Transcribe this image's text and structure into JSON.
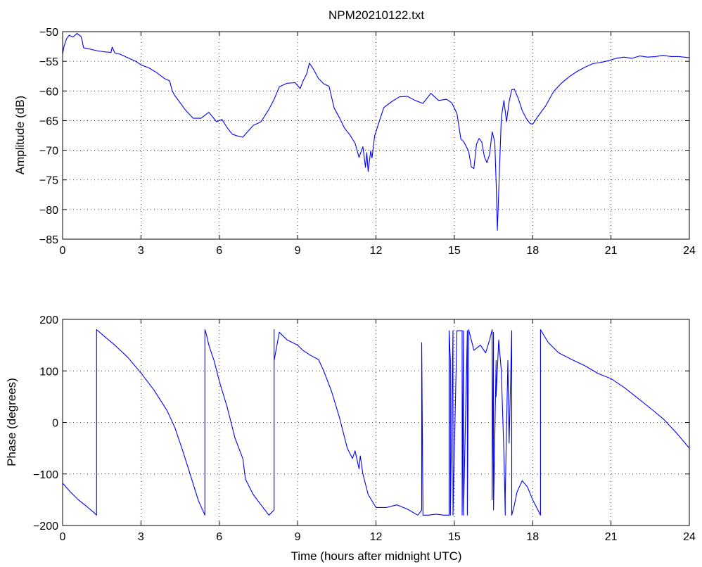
{
  "chart_data": [
    {
      "type": "line",
      "title": "NPM20210122.txt",
      "xlabel": "",
      "ylabel": "Amplitude (dB)",
      "xlim": [
        0,
        24
      ],
      "ylim": [
        -85,
        -50
      ],
      "xticks": [
        0,
        3,
        6,
        9,
        12,
        15,
        18,
        21,
        24
      ],
      "yticks": [
        -50,
        -55,
        -60,
        -65,
        -70,
        -75,
        -80,
        -85
      ],
      "xtick_labels": [
        "0",
        "3",
        "6",
        "9",
        "12",
        "15",
        "18",
        "21",
        "24"
      ],
      "ytick_labels": [
        "−50",
        "−55",
        "−60",
        "−65",
        "−70",
        "−75",
        "−80",
        "−85"
      ],
      "grid": true,
      "color": "#0000ff",
      "series": [
        {
          "x": [
            0,
            0.05,
            0.15,
            0.25,
            0.4,
            0.55,
            0.7,
            0.75,
            0.8,
            1.0,
            1.3,
            1.6,
            1.85,
            1.9,
            2.0,
            2.2,
            2.5,
            2.8,
            3.0,
            3.3,
            3.6,
            3.9,
            4.1,
            4.2,
            4.3,
            4.5,
            4.7,
            5.0,
            5.3,
            5.6,
            5.9,
            6.1,
            6.3,
            6.5,
            6.7,
            6.9,
            7.1,
            7.3,
            7.6,
            7.9,
            8.1,
            8.3,
            8.6,
            8.9,
            9.1,
            9.2,
            9.35,
            9.45,
            9.6,
            9.8,
            10.0,
            10.2,
            10.4,
            10.6,
            10.8,
            11.0,
            11.2,
            11.35,
            11.5,
            11.6,
            11.65,
            11.7,
            11.75,
            11.8,
            11.85,
            11.95,
            12.1,
            12.3,
            12.6,
            12.9,
            13.2,
            13.5,
            13.8,
            14.1,
            14.4,
            14.7,
            14.9,
            15.1,
            15.25,
            15.35,
            15.45,
            15.55,
            15.65,
            15.75,
            15.85,
            15.95,
            16.05,
            16.15,
            16.25,
            16.35,
            16.45,
            16.55,
            16.6,
            16.65,
            16.7,
            16.8,
            16.9,
            17.0,
            17.1,
            17.2,
            17.3,
            17.45,
            17.6,
            17.75,
            17.9,
            18.0,
            18.2,
            18.5,
            18.8,
            19.1,
            19.4,
            19.7,
            20.0,
            20.3,
            20.6,
            20.9,
            21.2,
            21.5,
            21.8,
            22.1,
            22.4,
            22.7,
            23.0,
            23.3,
            23.6,
            24.0
          ],
          "values": [
            -53.8,
            -52.5,
            -51.2,
            -50.6,
            -50.9,
            -50.3,
            -50.8,
            -51.5,
            -52.7,
            -52.9,
            -53.2,
            -53.4,
            -53.5,
            -52.6,
            -53.6,
            -53.8,
            -54.4,
            -55.0,
            -55.6,
            -56.1,
            -56.9,
            -57.9,
            -58.3,
            -60.0,
            -60.8,
            -62.0,
            -63.2,
            -64.6,
            -64.6,
            -63.6,
            -65.2,
            -64.8,
            -66.2,
            -67.3,
            -67.6,
            -67.8,
            -66.8,
            -65.8,
            -65.2,
            -63.1,
            -61.4,
            -59.3,
            -58.7,
            -58.6,
            -59.6,
            -58.4,
            -57.1,
            -55.3,
            -56.3,
            -57.9,
            -58.8,
            -59.2,
            -62.9,
            -64.5,
            -66.3,
            -67.4,
            -68.8,
            -71.2,
            -69.4,
            -72.9,
            -70.4,
            -73.6,
            -71.8,
            -70.1,
            -71.3,
            -67.6,
            -65.5,
            -62.8,
            -61.8,
            -61.0,
            -60.9,
            -61.6,
            -62.1,
            -60.4,
            -61.6,
            -61.4,
            -62.0,
            -63.8,
            -68.1,
            -68.5,
            -69.3,
            -70.2,
            -72.8,
            -73.1,
            -69.0,
            -68.0,
            -68.6,
            -71.1,
            -72.1,
            -70.7,
            -66.9,
            -68.6,
            -75.3,
            -83.5,
            -77.0,
            -64.5,
            -61.6,
            -65.2,
            -61.8,
            -59.8,
            -59.7,
            -61.3,
            -63.3,
            -64.6,
            -65.5,
            -65.6,
            -64.3,
            -62.5,
            -60.1,
            -58.7,
            -57.6,
            -56.7,
            -56.0,
            -55.4,
            -55.2,
            -54.9,
            -54.5,
            -54.3,
            -54.5,
            -54.1,
            -54.3,
            -54.2,
            -54.0,
            -54.2,
            -54.2,
            -54.4
          ]
        }
      ]
    },
    {
      "type": "line",
      "title": "",
      "xlabel": "Time (hours after midnight UTC)",
      "ylabel": "Phase (degrees)",
      "xlim": [
        0,
        24
      ],
      "ylim": [
        -200,
        200
      ],
      "xticks": [
        0,
        3,
        6,
        9,
        12,
        15,
        18,
        21,
        24
      ],
      "yticks": [
        200,
        100,
        0,
        -100,
        -200
      ],
      "xtick_labels": [
        "0",
        "3",
        "6",
        "9",
        "12",
        "15",
        "18",
        "21",
        "24"
      ],
      "ytick_labels": [
        "200",
        "100",
        "0",
        "−100",
        "−200"
      ],
      "grid": true,
      "color": "#0000ff",
      "series": [
        {
          "x": [
            0,
            0.3,
            0.6,
            0.9,
            1.2,
            1.3,
            1.3,
            1.6,
            2.0,
            2.5,
            3.0,
            3.5,
            4.0,
            4.3,
            4.6,
            4.9,
            5.2,
            5.45,
            5.45,
            5.5,
            5.6,
            5.8,
            6.0,
            6.3,
            6.6,
            6.9,
            7.0,
            7.3,
            7.6,
            7.9,
            8.1,
            8.1,
            8.1,
            8.3,
            8.6,
            9.0,
            9.2,
            9.5,
            9.8,
            10.0,
            10.3,
            10.6,
            10.9,
            11.1,
            11.2,
            11.35,
            11.4,
            11.5,
            11.7,
            12.0,
            12.2,
            12.4,
            12.8,
            13.2,
            13.6,
            13.75,
            13.75,
            13.8,
            13.8,
            14.0,
            14.3,
            14.6,
            14.8,
            14.8,
            14.85,
            14.85,
            14.95,
            14.95,
            15.1,
            15.3,
            15.3,
            15.35,
            15.35,
            15.5,
            15.5,
            15.55,
            15.55,
            15.75,
            16.0,
            16.2,
            16.35,
            16.45,
            16.45,
            16.5,
            16.5,
            16.6,
            16.6,
            16.7,
            16.8,
            16.9,
            16.95,
            16.95,
            17.05,
            17.1,
            17.2,
            17.2,
            17.3,
            17.4,
            17.6,
            17.8,
            18.0,
            18.2,
            18.3,
            18.3,
            18.6,
            19.0,
            19.5,
            20.0,
            20.5,
            21.0,
            21.5,
            22.0,
            22.5,
            23.0,
            23.5,
            24.0
          ],
          "values": [
            -118,
            -135,
            -150,
            -162,
            -175,
            -180,
            180,
            167,
            150,
            126,
            96,
            63,
            23,
            -10,
            -55,
            -103,
            -152,
            -180,
            180,
            172,
            150,
            120,
            80,
            30,
            -30,
            -70,
            -110,
            -140,
            -160,
            -180,
            -170,
            180,
            120,
            175,
            160,
            150,
            140,
            130,
            122,
            100,
            60,
            10,
            -50,
            -70,
            -55,
            -90,
            -65,
            -100,
            -140,
            -165,
            -165,
            -165,
            -160,
            -168,
            -180,
            -170,
            155,
            -170,
            -180,
            -180,
            -178,
            -180,
            -180,
            178,
            120,
            -180,
            178,
            -180,
            178,
            178,
            -180,
            178,
            -180,
            178,
            -180,
            178,
            180,
            140,
            150,
            135,
            160,
            180,
            -150,
            175,
            -170,
            120,
            50,
            160,
            100,
            -60,
            -180,
            -140,
            120,
            -40,
            178,
            -180,
            -160,
            -135,
            -113,
            -125,
            -150,
            -170,
            -180,
            180,
            155,
            135,
            122,
            110,
            95,
            85,
            68,
            48,
            28,
            7,
            -20,
            -50
          ]
        }
      ]
    }
  ]
}
